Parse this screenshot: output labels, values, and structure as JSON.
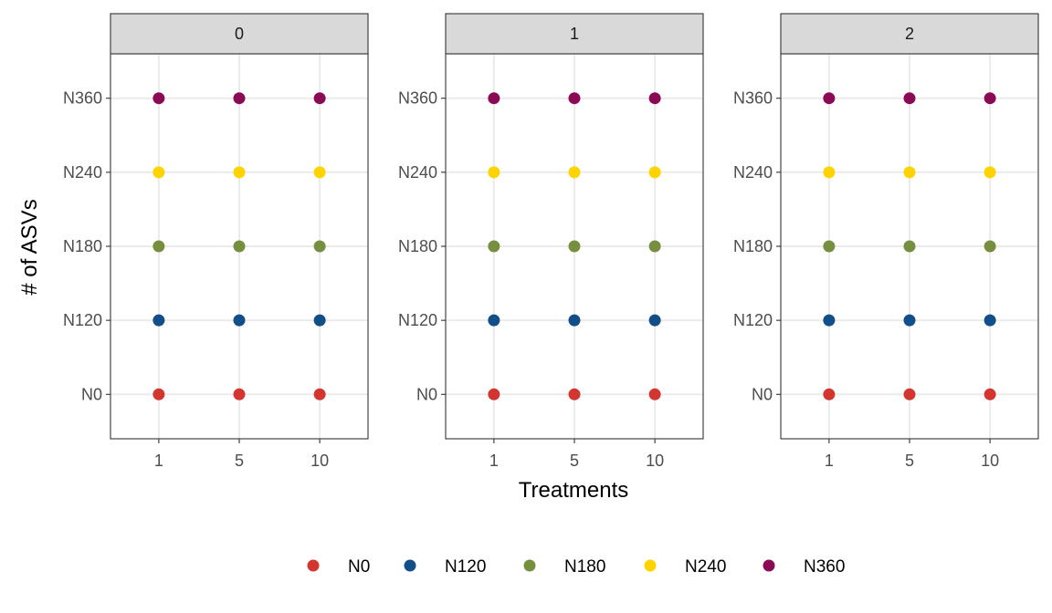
{
  "chart_data": {
    "type": "scatter",
    "facets": [
      "0",
      "1",
      "2"
    ],
    "xlabel": "Treatments",
    "ylabel": "# of ASVs",
    "x_categories": [
      "1",
      "5",
      "10"
    ],
    "y_categories": [
      "N0",
      "N120",
      "N180",
      "N240",
      "N360"
    ],
    "grid": true,
    "legend_position": "bottom",
    "series": [
      {
        "name": "N0",
        "color": "#d2362f",
        "x": [
          "1",
          "5",
          "10"
        ],
        "y": [
          "N0",
          "N0",
          "N0"
        ]
      },
      {
        "name": "N120",
        "color": "#124e87",
        "x": [
          "1",
          "5",
          "10"
        ],
        "y": [
          "N120",
          "N120",
          "N120"
        ]
      },
      {
        "name": "N180",
        "color": "#768f3e",
        "x": [
          "1",
          "5",
          "10"
        ],
        "y": [
          "N180",
          "N180",
          "N180"
        ]
      },
      {
        "name": "N240",
        "color": "#fdd300",
        "x": [
          "1",
          "5",
          "10"
        ],
        "y": [
          "N240",
          "N240",
          "N240"
        ]
      },
      {
        "name": "N360",
        "color": "#8a0a56",
        "x": [
          "1",
          "5",
          "10"
        ],
        "y": [
          "N360",
          "N360",
          "N360"
        ]
      }
    ]
  }
}
